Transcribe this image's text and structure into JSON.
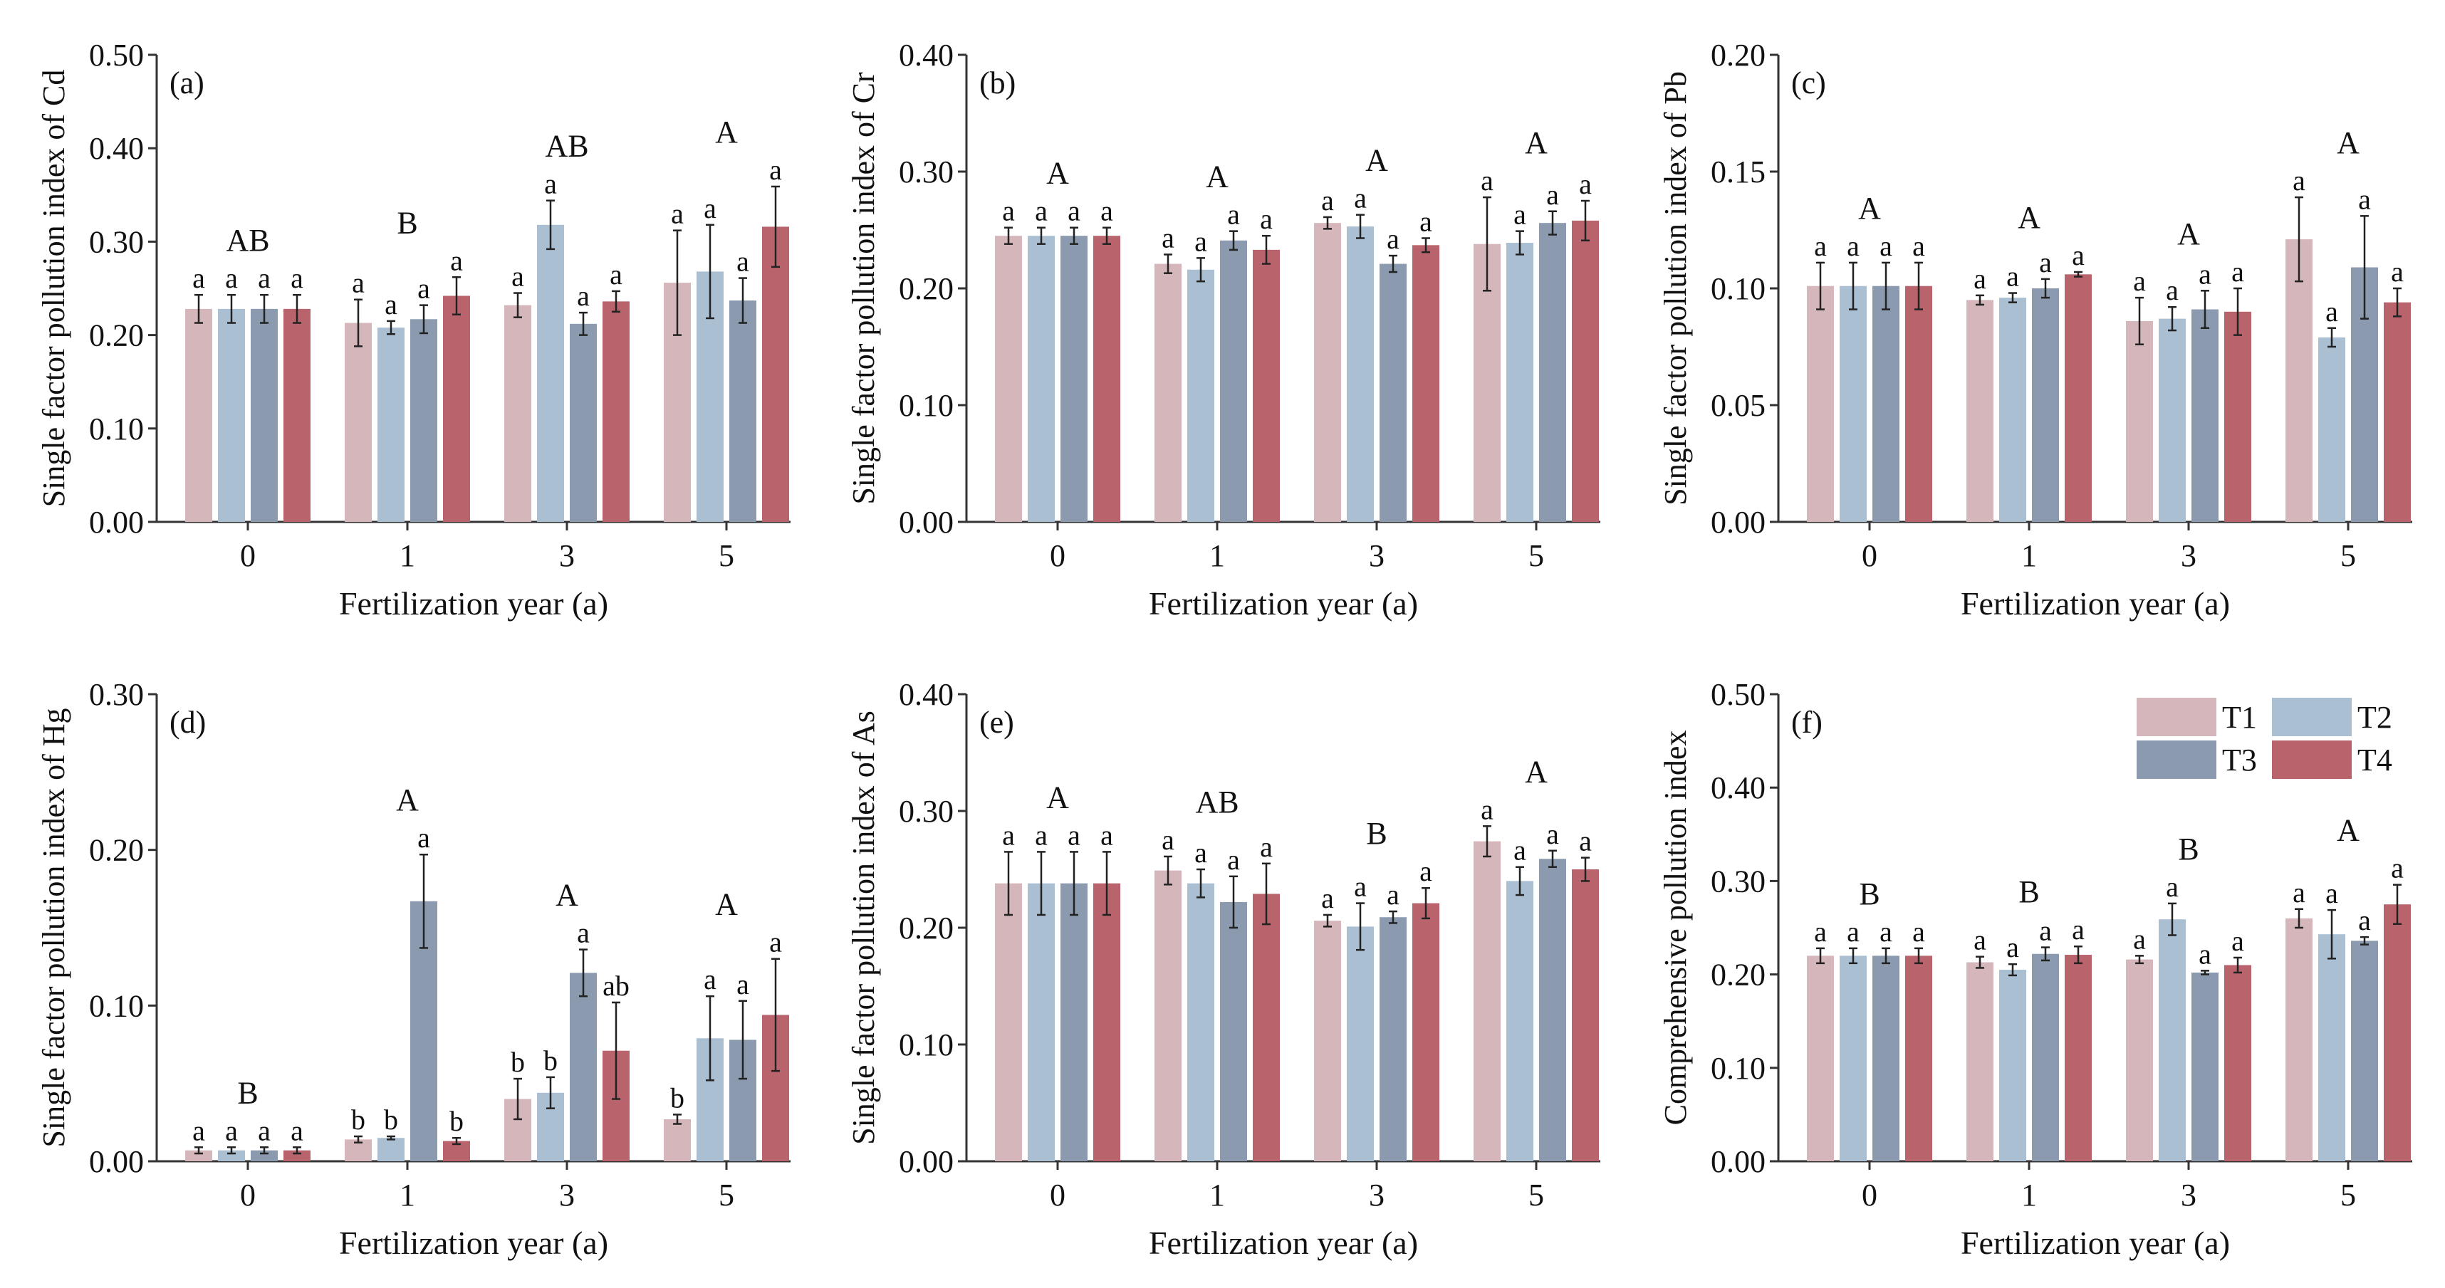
{
  "legend": {
    "entries": [
      "T1",
      "T2",
      "T3",
      "T4"
    ]
  },
  "colors": {
    "T1": "#d5b6ba",
    "T2": "#abbfd3",
    "T3": "#8b9aae",
    "T4": "#b9646c"
  },
  "chart_data": [
    {
      "type": "bar",
      "panel_label": "(a)",
      "ylabel": "Single factor pollution index of Cd",
      "xlabel": "Fertilization year (a)",
      "ylim": [
        0,
        0.5
      ],
      "yticks": [
        0,
        0.1,
        0.2,
        0.3,
        0.4,
        0.5
      ],
      "ytick_labels": [
        "0.00",
        "0.10",
        "0.20",
        "0.30",
        "0.40",
        "0.50"
      ],
      "categories": [
        "0",
        "1",
        "3",
        "5"
      ],
      "group_letters": [
        "AB",
        "B",
        "AB",
        "A"
      ],
      "series": [
        {
          "name": "T1",
          "values": [
            0.228,
            0.213,
            0.232,
            0.256
          ],
          "errors": [
            0.015,
            0.025,
            0.013,
            0.056
          ],
          "letters": [
            "a",
            "a",
            "a",
            "a"
          ]
        },
        {
          "name": "T2",
          "values": [
            0.228,
            0.208,
            0.318,
            0.268
          ],
          "errors": [
            0.015,
            0.007,
            0.026,
            0.05
          ],
          "letters": [
            "a",
            "a",
            "a",
            "a"
          ]
        },
        {
          "name": "T3",
          "values": [
            0.228,
            0.217,
            0.212,
            0.237
          ],
          "errors": [
            0.015,
            0.015,
            0.012,
            0.024
          ],
          "letters": [
            "a",
            "a",
            "a",
            "a"
          ]
        },
        {
          "name": "T4",
          "values": [
            0.228,
            0.242,
            0.236,
            0.316
          ],
          "errors": [
            0.015,
            0.02,
            0.011,
            0.043
          ],
          "letters": [
            "a",
            "a",
            "a",
            "a"
          ]
        }
      ]
    },
    {
      "type": "bar",
      "panel_label": "(b)",
      "ylabel": "Single factor pollution index of Cr",
      "xlabel": "Fertilization year (a)",
      "ylim": [
        0,
        0.4
      ],
      "yticks": [
        0,
        0.1,
        0.2,
        0.3,
        0.4
      ],
      "ytick_labels": [
        "0.00",
        "0.10",
        "0.20",
        "0.30",
        "0.40"
      ],
      "categories": [
        "0",
        "1",
        "3",
        "5"
      ],
      "group_letters": [
        "A",
        "A",
        "A",
        "A"
      ],
      "series": [
        {
          "name": "T1",
          "values": [
            0.245,
            0.221,
            0.256,
            0.238
          ],
          "errors": [
            0.007,
            0.008,
            0.005,
            0.04
          ],
          "letters": [
            "a",
            "a",
            "a",
            "a"
          ]
        },
        {
          "name": "T2",
          "values": [
            0.245,
            0.216,
            0.253,
            0.239
          ],
          "errors": [
            0.007,
            0.01,
            0.01,
            0.01
          ],
          "letters": [
            "a",
            "a",
            "a",
            "a"
          ]
        },
        {
          "name": "T3",
          "values": [
            0.245,
            0.241,
            0.221,
            0.256
          ],
          "errors": [
            0.007,
            0.008,
            0.007,
            0.01
          ],
          "letters": [
            "a",
            "a",
            "a",
            "a"
          ]
        },
        {
          "name": "T4",
          "values": [
            0.245,
            0.233,
            0.237,
            0.258
          ],
          "errors": [
            0.007,
            0.012,
            0.006,
            0.017
          ],
          "letters": [
            "a",
            "a",
            "a",
            "a"
          ]
        }
      ]
    },
    {
      "type": "bar",
      "panel_label": "(c)",
      "ylabel": "Single factor pollution index of Pb",
      "xlabel": "Fertilization year (a)",
      "ylim": [
        0,
        0.2
      ],
      "yticks": [
        0,
        0.05,
        0.1,
        0.15,
        0.2
      ],
      "ytick_labels": [
        "0.00",
        "0.05",
        "0.10",
        "0.15",
        "0.20"
      ],
      "categories": [
        "0",
        "1",
        "3",
        "5"
      ],
      "group_letters": [
        "A",
        "A",
        "A",
        "A"
      ],
      "series": [
        {
          "name": "T1",
          "values": [
            0.101,
            0.095,
            0.086,
            0.121
          ],
          "errors": [
            0.01,
            0.002,
            0.01,
            0.018
          ],
          "letters": [
            "a",
            "a",
            "a",
            "a"
          ]
        },
        {
          "name": "T2",
          "values": [
            0.101,
            0.096,
            0.087,
            0.079
          ],
          "errors": [
            0.01,
            0.002,
            0.005,
            0.004
          ],
          "letters": [
            "a",
            "a",
            "a",
            "a"
          ]
        },
        {
          "name": "T3",
          "values": [
            0.101,
            0.1,
            0.091,
            0.109
          ],
          "errors": [
            0.01,
            0.004,
            0.008,
            0.022
          ],
          "letters": [
            "a",
            "a",
            "a",
            "a"
          ]
        },
        {
          "name": "T4",
          "values": [
            0.101,
            0.106,
            0.09,
            0.094
          ],
          "errors": [
            0.01,
            0.001,
            0.01,
            0.006
          ],
          "letters": [
            "a",
            "a",
            "a",
            "a"
          ]
        }
      ]
    },
    {
      "type": "bar",
      "panel_label": "(d)",
      "ylabel": "Single factor pollution index of Hg",
      "xlabel": "Fertilization year (a)",
      "ylim": [
        0,
        0.3
      ],
      "yticks": [
        0,
        0.1,
        0.2,
        0.3
      ],
      "ytick_labels": [
        "0.00",
        "0.10",
        "0.20",
        "0.30"
      ],
      "categories": [
        "0",
        "1",
        "3",
        "5"
      ],
      "group_letters": [
        "B",
        "A",
        "A",
        "A"
      ],
      "series": [
        {
          "name": "T1",
          "values": [
            0.007,
            0.014,
            0.04,
            0.027
          ],
          "errors": [
            0.002,
            0.002,
            0.013,
            0.003
          ],
          "letters": [
            "a",
            "b",
            "b",
            "b"
          ]
        },
        {
          "name": "T2",
          "values": [
            0.007,
            0.015,
            0.044,
            0.079
          ],
          "errors": [
            0.002,
            0.001,
            0.01,
            0.027
          ],
          "letters": [
            "a",
            "b",
            "b",
            "a"
          ]
        },
        {
          "name": "T3",
          "values": [
            0.007,
            0.167,
            0.121,
            0.078
          ],
          "errors": [
            0.002,
            0.03,
            0.015,
            0.025
          ],
          "letters": [
            "a",
            "a",
            "a",
            "a"
          ]
        },
        {
          "name": "T4",
          "values": [
            0.007,
            0.013,
            0.071,
            0.094
          ],
          "errors": [
            0.002,
            0.002,
            0.031,
            0.036
          ],
          "letters": [
            "a",
            "b",
            "ab",
            "a"
          ]
        }
      ]
    },
    {
      "type": "bar",
      "panel_label": "(e)",
      "ylabel": "Single factor pollution index of As",
      "xlabel": "Fertilization year (a)",
      "ylim": [
        0,
        0.4
      ],
      "yticks": [
        0,
        0.1,
        0.2,
        0.3,
        0.4
      ],
      "ytick_labels": [
        "0.00",
        "0.10",
        "0.20",
        "0.30",
        "0.40"
      ],
      "categories": [
        "0",
        "1",
        "3",
        "5"
      ],
      "group_letters": [
        "A",
        "AB",
        "B",
        "A"
      ],
      "series": [
        {
          "name": "T1",
          "values": [
            0.238,
            0.249,
            0.206,
            0.274
          ],
          "errors": [
            0.027,
            0.012,
            0.005,
            0.013
          ],
          "letters": [
            "a",
            "a",
            "a",
            "a"
          ]
        },
        {
          "name": "T2",
          "values": [
            0.238,
            0.238,
            0.201,
            0.24
          ],
          "errors": [
            0.027,
            0.012,
            0.02,
            0.012
          ],
          "letters": [
            "a",
            "a",
            "a",
            "a"
          ]
        },
        {
          "name": "T3",
          "values": [
            0.238,
            0.222,
            0.209,
            0.259
          ],
          "errors": [
            0.027,
            0.022,
            0.005,
            0.007
          ],
          "letters": [
            "a",
            "a",
            "a",
            "a"
          ]
        },
        {
          "name": "T4",
          "values": [
            0.238,
            0.229,
            0.221,
            0.25
          ],
          "errors": [
            0.027,
            0.026,
            0.013,
            0.01
          ],
          "letters": [
            "a",
            "a",
            "a",
            "a"
          ]
        }
      ]
    },
    {
      "type": "bar",
      "panel_label": "(f)",
      "ylabel": "Comprehensive pollution index",
      "xlabel": "Fertilization year (a)",
      "ylim": [
        0,
        0.5
      ],
      "yticks": [
        0,
        0.1,
        0.2,
        0.3,
        0.4,
        0.5
      ],
      "ytick_labels": [
        "0.00",
        "0.10",
        "0.20",
        "0.30",
        "0.40",
        "0.50"
      ],
      "categories": [
        "0",
        "1",
        "3",
        "5"
      ],
      "group_letters": [
        "B",
        "B",
        "B",
        "A"
      ],
      "series": [
        {
          "name": "T1",
          "values": [
            0.22,
            0.213,
            0.216,
            0.26
          ],
          "errors": [
            0.008,
            0.006,
            0.004,
            0.01
          ],
          "letters": [
            "a",
            "a",
            "a",
            "a"
          ]
        },
        {
          "name": "T2",
          "values": [
            0.22,
            0.205,
            0.259,
            0.243
          ],
          "errors": [
            0.008,
            0.006,
            0.017,
            0.026
          ],
          "letters": [
            "a",
            "a",
            "a",
            "a"
          ]
        },
        {
          "name": "T3",
          "values": [
            0.22,
            0.222,
            0.202,
            0.236
          ],
          "errors": [
            0.008,
            0.007,
            0.002,
            0.004
          ],
          "letters": [
            "a",
            "a",
            "a",
            "a"
          ]
        },
        {
          "name": "T4",
          "values": [
            0.22,
            0.221,
            0.21,
            0.275
          ],
          "errors": [
            0.008,
            0.009,
            0.008,
            0.021
          ],
          "letters": [
            "a",
            "a",
            "a",
            "a"
          ]
        }
      ]
    }
  ]
}
